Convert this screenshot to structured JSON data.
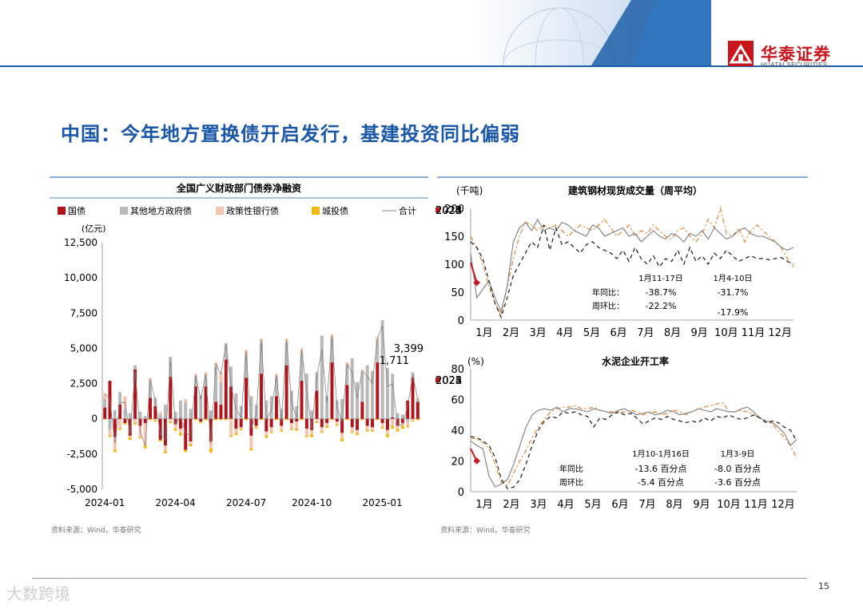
{
  "header": {
    "logo_cn": "华泰证券",
    "logo_en": "HUATAI SECURITIES",
    "title": "中国：今年地方置换债开启发行，基建投资同比偏弱",
    "page": "15",
    "watermark": "大数跨境",
    "colors": {
      "accent": "#1a57a8",
      "brand": "#c8161d"
    }
  },
  "chart_data": [
    {
      "type": "bar",
      "title": "全国广义财政部门债券净融资",
      "ylabel": "(亿元)",
      "ylim": [
        -5000,
        12500
      ],
      "yticks": [
        "12,500",
        "10,000",
        "7,500",
        "5,000",
        "2,500",
        "0",
        "-2,500",
        "-5,000"
      ],
      "ytick_values": [
        12500,
        10000,
        7500,
        5000,
        2500,
        0,
        -2500,
        -5000
      ],
      "xticks": [
        "2024-01",
        "2024-04",
        "2024-07",
        "2024-10",
        "2025-01"
      ],
      "legend": [
        "国债",
        "其他地方政府债",
        "政策性银行债",
        "城投债",
        "合计"
      ],
      "colors": [
        "#b0141a",
        "#b8b8b8",
        "#f4c6b0",
        "#f2b80f",
        "#888888"
      ],
      "series": [
        {
          "name": "国债",
          "values": [
            800,
            2700,
            -1300,
            1000,
            -300,
            -1200,
            3500,
            -500,
            -300,
            1500,
            900,
            -1500,
            -1900,
            3000,
            -400,
            -700,
            -2200,
            -1600,
            2300,
            -200,
            2300,
            -1600,
            1200,
            1000,
            4200,
            2300,
            -700,
            -600,
            2900,
            -1200,
            -500,
            3200,
            -900,
            -600,
            1600,
            -500,
            3800,
            -300,
            -200,
            2700,
            -700,
            -800,
            2000,
            -600,
            -300,
            4000,
            -200,
            -1000,
            2400,
            -600,
            -800,
            1200,
            -500,
            -600,
            4000,
            -300,
            -800,
            100,
            -500,
            -300,
            1300,
            2900,
            1200
          ]
        },
        {
          "name": "其他地方政府债",
          "values": [
            600,
            -800,
            600,
            900,
            700,
            400,
            300,
            500,
            200,
            1100,
            600,
            300,
            1000,
            1400,
            500,
            1300,
            1200,
            700,
            600,
            1600,
            700,
            600,
            2500,
            1600,
            1100,
            1400,
            1800,
            900,
            1500,
            1600,
            1000,
            2100,
            1300,
            1600,
            1300,
            700,
            1600,
            2000,
            900,
            1900,
            3200,
            600,
            1300,
            5900,
            1600,
            1700,
            1300,
            1400,
            1400,
            4300,
            2600,
            2100,
            3800,
            3400,
            1600,
            7000,
            3600,
            3100,
            400,
            300,
            -200,
            400,
            200
          ]
        },
        {
          "name": "政策性银行债",
          "values": [
            400,
            -400,
            -900,
            -700,
            900,
            -100,
            -300,
            -800,
            -1600,
            300,
            -100,
            200,
            -400,
            -200,
            -300,
            -300,
            200,
            -200,
            300,
            100,
            300,
            -500,
            300,
            700,
            100,
            -1200,
            -300,
            -100,
            500,
            -900,
            -100,
            400,
            -300,
            -300,
            300,
            -300,
            300,
            -400,
            -500,
            400,
            -500,
            -300,
            -200,
            -300,
            -200,
            300,
            -200,
            -400,
            200,
            -300,
            -200,
            200,
            -300,
            -200,
            200,
            -300,
            -300,
            -500,
            -200,
            -200,
            -300,
            -100,
            100
          ]
        },
        {
          "name": "城投债",
          "values": [
            -50,
            -100,
            -150,
            -100,
            -100,
            -200,
            -100,
            -100,
            -200,
            -100,
            -100,
            -100,
            -150,
            -100,
            -150,
            -200,
            -150,
            -150,
            -100,
            -100,
            -100,
            -300,
            -100,
            -100,
            -100,
            -100,
            -150,
            -100,
            -100,
            -150,
            -100,
            -100,
            -150,
            -100,
            -100,
            -100,
            -100,
            -100,
            -150,
            -100,
            -100,
            -200,
            -100,
            -100,
            -150,
            -100,
            -100,
            -200,
            -100,
            -100,
            -150,
            -100,
            -100,
            -100,
            -100,
            -100,
            -200,
            -200,
            -200,
            -200,
            -100,
            -100,
            -100
          ]
        }
      ],
      "total": [
        1750,
        1400,
        -1750,
        1100,
        1200,
        -1100,
        3400,
        -900,
        -1900,
        2800,
        1300,
        -1100,
        -1450,
        4100,
        -350,
        100,
        -950,
        -1250,
        3100,
        1400,
        3200,
        -1800,
        3900,
        3200,
        5300,
        2400,
        650,
        100,
        4800,
        -650,
        300,
        5600,
        -50,
        600,
        3100,
        -200,
        5600,
        1200,
        50,
        4900,
        1900,
        -700,
        3000,
        4900,
        1150,
        5900,
        800,
        -200,
        3900,
        3300,
        1450,
        3400,
        3000,
        2500,
        5700,
        6600,
        2300,
        2500,
        -500,
        -400,
        900,
        3100,
        1400
      ],
      "annotations": [
        "3,399",
        "1,711"
      ],
      "source": "资料来源：Wind，华泰研究"
    },
    {
      "type": "line",
      "title": "建筑钢材现货成交量（周平均）",
      "ylabel": "(千吨)",
      "ylim": [
        0,
        200
      ],
      "yticks": [
        "200",
        "150",
        "100",
        "50",
        "0"
      ],
      "ytick_values": [
        200,
        150,
        100,
        50,
        0
      ],
      "xticks": [
        "1月",
        "2月",
        "3月",
        "4月",
        "5月",
        "6月",
        "7月",
        "8月",
        "9月",
        "10月",
        "11月",
        "12月"
      ],
      "legend": [
        "2022",
        "2023",
        "2024",
        "2025"
      ],
      "colors": [
        "#e8822f",
        "#7f7f7f",
        "#1a1a1a",
        "#c8161d"
      ],
      "series": [
        {
          "name": "2022",
          "values": [
            150,
            130,
            100,
            60,
            30,
            10,
            60,
            110,
            150,
            175,
            170,
            160,
            170,
            165,
            170,
            160,
            150,
            160,
            170,
            165,
            160,
            170,
            180,
            165,
            150,
            160,
            170,
            150,
            160,
            155,
            170,
            160,
            150,
            145,
            160,
            165,
            150,
            140,
            155,
            180,
            165,
            200,
            155,
            150,
            165,
            140,
            160,
            170,
            160,
            150,
            140,
            130,
            110,
            95
          ]
        },
        {
          "name": "2023",
          "values": [
            120,
            40,
            55,
            70,
            40,
            15,
            60,
            140,
            165,
            175,
            160,
            180,
            160,
            165,
            160,
            175,
            170,
            160,
            155,
            150,
            170,
            165,
            150,
            155,
            160,
            165,
            150,
            155,
            140,
            150,
            160,
            150,
            145,
            155,
            150,
            140,
            155,
            150,
            160,
            145,
            165,
            155,
            145,
            150,
            160,
            165,
            155,
            150,
            150,
            145,
            140,
            130,
            125,
            130
          ]
        },
        {
          "name": "2024",
          "values": [
            140,
            130,
            110,
            70,
            30,
            5,
            40,
            80,
            100,
            120,
            140,
            130,
            170,
            125,
            165,
            135,
            140,
            130,
            120,
            135,
            140,
            130,
            125,
            120,
            110,
            125,
            105,
            130,
            110,
            100,
            115,
            95,
            110,
            105,
            125,
            100,
            130,
            105,
            115,
            100,
            120,
            110,
            125,
            115,
            105,
            110,
            115,
            110,
            110,
            108,
            110,
            112,
            105,
            100
          ]
        },
        {
          "name": "2025",
          "values": [
            103,
            67
          ]
        }
      ],
      "x_points_per_year": 54,
      "annotations": {
        "period1": "1月11-17日",
        "period2": "1月4-10日",
        "yoy_label": "年同比：",
        "wow_label": "周环比：",
        "yoy1": "-38.7%",
        "yoy2": "-31.7%",
        "wow1": "-22.2%",
        "wow2": "-17.9%"
      }
    },
    {
      "type": "line",
      "title": "水泥企业开工率",
      "ylabel": "(%)",
      "ylim": [
        0,
        80
      ],
      "yticks": [
        "80",
        "60",
        "40",
        "20",
        "0"
      ],
      "ytick_values": [
        80,
        60,
        40,
        20,
        0
      ],
      "xticks": [
        "1月",
        "2月",
        "3月",
        "4月",
        "5月",
        "6月",
        "7月",
        "8月",
        "9月",
        "10月",
        "11月",
        "12月"
      ],
      "legend": [
        "2022",
        "2023",
        "2024",
        "2025"
      ],
      "colors": [
        "#e8822f",
        "#7f7f7f",
        "#1a1a1a",
        "#c8161d"
      ],
      "series": [
        {
          "name": "2022",
          "values": [
            35,
            34,
            32,
            28,
            18,
            6,
            4,
            12,
            20,
            27,
            35,
            42,
            47,
            52,
            54,
            55,
            55,
            56,
            54,
            54,
            55,
            53,
            52,
            52,
            51,
            52,
            53,
            52,
            50,
            51,
            52,
            50,
            51,
            53,
            52,
            50,
            52,
            54,
            55,
            56,
            57,
            58,
            52,
            52,
            53,
            52,
            50,
            48,
            46,
            44,
            40,
            35,
            30,
            22
          ]
        },
        {
          "name": "2023",
          "values": [
            33,
            30,
            28,
            10,
            3,
            5,
            8,
            18,
            30,
            42,
            50,
            53,
            54,
            53,
            55,
            52,
            54,
            54,
            53,
            52,
            54,
            53,
            52,
            51,
            53,
            54,
            52,
            50,
            51,
            52,
            50,
            51,
            53,
            52,
            50,
            51,
            52,
            54,
            53,
            52,
            54,
            53,
            52,
            52,
            54,
            55,
            52,
            48,
            46,
            45,
            42,
            38,
            30,
            34
          ]
        },
        {
          "name": "2024",
          "values": [
            36,
            35,
            33,
            30,
            22,
            8,
            2,
            3,
            8,
            18,
            30,
            40,
            46,
            49,
            48,
            52,
            51,
            52,
            50,
            49,
            42,
            48,
            47,
            50,
            52,
            50,
            51,
            48,
            44,
            46,
            48,
            47,
            49,
            47,
            46,
            45,
            46,
            45,
            48,
            46,
            49,
            48,
            50,
            48,
            47,
            48,
            50,
            48,
            45,
            46,
            45,
            42,
            40,
            33
          ]
        },
        {
          "name": "2025",
          "values": [
            28,
            20
          ]
        }
      ],
      "x_points_per_year": 54,
      "annotations": {
        "period1": "1月10-1月16日",
        "period2": "1月3-9日",
        "yoy_label": "年同比",
        "wow_label": "周环比",
        "yoy1": "-13.6 百分点",
        "yoy2": "-8.0 百分点",
        "wow1": "-5.4 百分点",
        "wow2": "-3.6 百分点"
      },
      "source": "资料来源：Wind，华泰研究"
    }
  ]
}
